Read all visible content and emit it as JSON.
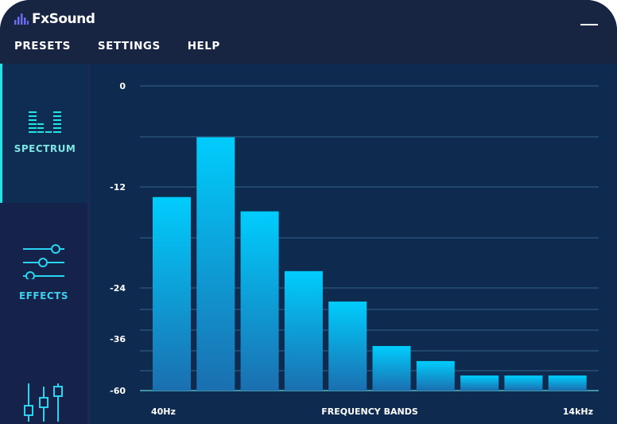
{
  "app": {
    "title": "FxSound"
  },
  "menu": {
    "items": [
      "PRESETS",
      "SETTINGS",
      "HELP"
    ]
  },
  "sidebar": {
    "items": [
      {
        "label": "SPECTRUM",
        "icon": "spectrum-icon",
        "active": true
      },
      {
        "label": "EFFECTS",
        "icon": "sliders-icon",
        "active": false
      },
      {
        "label": "",
        "icon": "equalizer-icon",
        "active": false
      }
    ]
  },
  "colors": {
    "accent": "#1ee6e6",
    "bar_top": "#00cdfd",
    "bar_bottom": "#1b6fb0",
    "header": "#172542",
    "panel": "#0e2b4f"
  },
  "chart_data": {
    "type": "bar",
    "title": "",
    "xlabel": "FREQUENCY BANDS",
    "x_start_label": "40Hz",
    "x_end_label": "14kHz",
    "ylabel": "",
    "ylim": [
      -60,
      0
    ],
    "y_ticks": [
      0,
      -12,
      -24,
      -36,
      -60
    ],
    "grid": true,
    "values": [
      -13.2,
      -6.1,
      -14.9,
      -22.0,
      -27.2,
      -39.3,
      -46.3,
      -53.0,
      -53.0,
      -53.0
    ]
  }
}
